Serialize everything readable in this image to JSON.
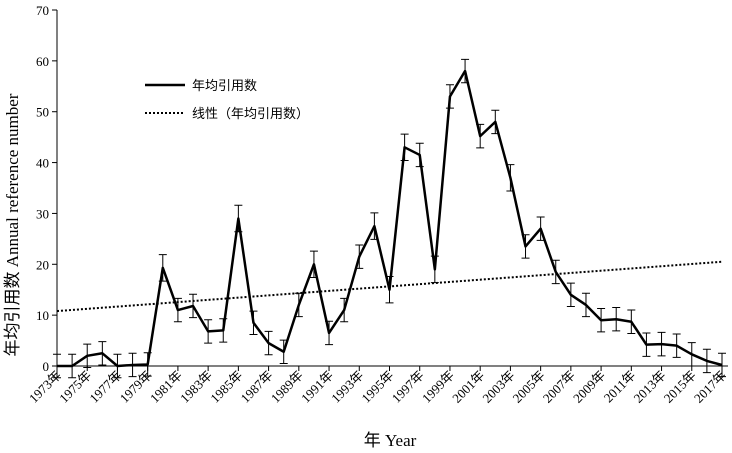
{
  "chart_data": {
    "type": "line",
    "xlabel": "年  Year",
    "ylabel": "年均引用数  Annual reference number",
    "x": [
      1973,
      1974,
      1975,
      1976,
      1977,
      1978,
      1979,
      1980,
      1981,
      1982,
      1983,
      1984,
      1985,
      1986,
      1987,
      1988,
      1989,
      1990,
      1991,
      1992,
      1993,
      1994,
      1995,
      1996,
      1997,
      1998,
      1999,
      2000,
      2001,
      2002,
      2003,
      2004,
      2005,
      2006,
      2007,
      2008,
      2009,
      2010,
      2011,
      2012,
      2013,
      2014,
      2015,
      2016,
      2017
    ],
    "series": [
      {
        "name": "年均引用数",
        "color": "#000000",
        "values": [
          0,
          0,
          2,
          2.5,
          0,
          0.2,
          0.3,
          19.3,
          11,
          11.8,
          6.8,
          7,
          29,
          8.5,
          4.5,
          2.8,
          12,
          20,
          6.5,
          11,
          21.5,
          27.5,
          15,
          43,
          41.5,
          19,
          53,
          58,
          45.2,
          48,
          37,
          23.5,
          27,
          18.5,
          14,
          12,
          9,
          9.2,
          8.7,
          4.2,
          4.3,
          4,
          2.3,
          1,
          0.2
        ],
        "errors": [
          2.3,
          2.3,
          2.3,
          2.3,
          2.3,
          2.3,
          2.3,
          2.6,
          2.3,
          2.3,
          2.3,
          2.3,
          2.6,
          2.3,
          2.3,
          2.3,
          2.3,
          2.6,
          2.3,
          2.3,
          2.3,
          2.6,
          2.6,
          2.6,
          2.3,
          2.6,
          2.3,
          2.3,
          2.3,
          2.3,
          2.6,
          2.3,
          2.3,
          2.3,
          2.3,
          2.3,
          2.3,
          2.3,
          2.3,
          2.3,
          2.3,
          2.3,
          2.3,
          2.3,
          2.3
        ]
      }
    ],
    "trendline": {
      "name": "线性（年均引用数）",
      "color": "#000000",
      "x": [
        1973,
        2017
      ],
      "values": [
        10.8,
        20.5
      ]
    },
    "xlim": [
      1973,
      2017
    ],
    "xticks": [
      {
        "value": 1973,
        "label": "1973年"
      },
      {
        "value": 1975,
        "label": "1975年"
      },
      {
        "value": 1977,
        "label": "1977年"
      },
      {
        "value": 1979,
        "label": "1979年"
      },
      {
        "value": 1981,
        "label": "1981年"
      },
      {
        "value": 1983,
        "label": "1983年"
      },
      {
        "value": 1985,
        "label": "1985年"
      },
      {
        "value": 1987,
        "label": "1987年"
      },
      {
        "value": 1989,
        "label": "1989年"
      },
      {
        "value": 1991,
        "label": "1991年"
      },
      {
        "value": 1993,
        "label": "1993年"
      },
      {
        "value": 1995,
        "label": "1995年"
      },
      {
        "value": 1997,
        "label": "1997年"
      },
      {
        "value": 1999,
        "label": "1999年"
      },
      {
        "value": 2001,
        "label": "2001年"
      },
      {
        "value": 2003,
        "label": "2003年"
      },
      {
        "value": 2005,
        "label": "2005年"
      },
      {
        "value": 2007,
        "label": "2007年"
      },
      {
        "value": 2009,
        "label": "2009年"
      },
      {
        "value": 2011,
        "label": "2011年"
      },
      {
        "value": 2013,
        "label": "2013年"
      },
      {
        "value": 2015,
        "label": "2015年"
      },
      {
        "value": 2017,
        "label": "2017年"
      }
    ],
    "ylim": [
      0,
      70
    ],
    "yticks": [
      0,
      10,
      20,
      30,
      40,
      50,
      60,
      70
    ]
  }
}
